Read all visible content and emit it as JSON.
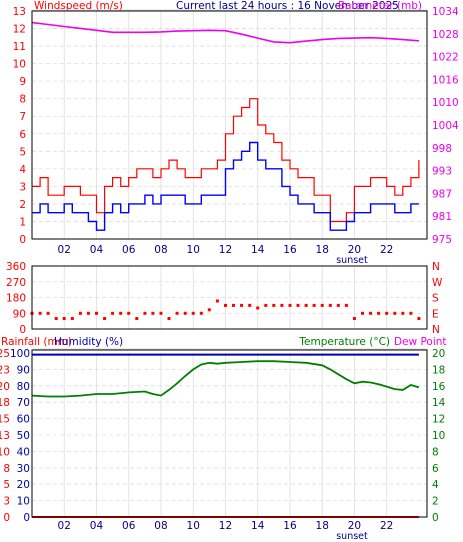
{
  "header": {
    "windspeed_label": "Windspeed (m/s)",
    "title": "Current last 24 hours : 16 November 2025",
    "barometer_label": "Barometer (mb)"
  },
  "labels": {
    "sunset": "sunset",
    "rainfall": "Rainfall (mm)",
    "humidity": "Humidity (%)",
    "temperature": "Temperature (°C)",
    "dew_point": "Dew Point"
  },
  "colors": {
    "wind_speed": "#0000ff",
    "wind_gust": "#ff0000",
    "barometer": "#ee00ee",
    "direction": "#ff0000",
    "humidity": "#0000aa",
    "temperature": "#008000",
    "rainfall": "#ff0000"
  },
  "chart_data": [
    {
      "type": "line",
      "panel": "wind-barometer",
      "x_ticks": [
        "02",
        "04",
        "06",
        "08",
        "10",
        "12",
        "14",
        "16",
        "18",
        "20",
        "22"
      ],
      "xlim": [
        0,
        24.5
      ],
      "left_axis": {
        "label": "Windspeed (m/s)",
        "ticks": [
          0,
          1,
          2,
          3,
          4,
          5,
          6,
          7,
          8,
          9,
          10,
          11,
          12,
          13
        ],
        "ylim": [
          0,
          13
        ]
      },
      "right_axis": {
        "label": "Barometer (mb)",
        "ticks": [
          "975",
          "981",
          "987",
          "993",
          "998",
          "1004",
          "1010",
          "1016",
          "1022",
          "1028",
          "1034"
        ],
        "ylim": [
          975,
          1034
        ]
      },
      "grid": true,
      "series": [
        {
          "name": "Windspeed",
          "color": "#0000ff",
          "x": [
            0.0,
            0.5,
            1.0,
            1.5,
            2.0,
            2.5,
            3.0,
            3.5,
            4.0,
            4.5,
            5.0,
            5.5,
            6.0,
            6.5,
            7.0,
            7.5,
            8.0,
            8.5,
            9.0,
            9.5,
            10.0,
            10.5,
            11.0,
            11.5,
            12.0,
            12.5,
            13.0,
            13.5,
            14.0,
            14.5,
            15.0,
            15.5,
            16.0,
            16.5,
            17.0,
            17.5,
            18.0,
            18.5,
            19.0,
            19.5,
            20.0,
            20.5,
            21.0,
            21.5,
            22.0,
            22.5,
            23.0,
            23.5,
            24.0
          ],
          "values": [
            1.5,
            2.0,
            1.5,
            1.5,
            2.0,
            1.5,
            1.5,
            1.0,
            0.5,
            1.5,
            2.0,
            1.5,
            2.0,
            2.0,
            2.5,
            2.0,
            2.5,
            2.5,
            2.5,
            2.0,
            2.0,
            2.5,
            2.5,
            2.5,
            4.0,
            4.5,
            5.0,
            5.5,
            4.5,
            4.0,
            4.0,
            3.0,
            2.5,
            2.0,
            2.0,
            1.5,
            1.5,
            0.5,
            0.5,
            1.0,
            1.5,
            1.5,
            2.0,
            2.0,
            2.0,
            1.5,
            1.5,
            2.0,
            2.0
          ]
        },
        {
          "name": "Gust",
          "color": "#ff0000",
          "x": [
            0.0,
            0.5,
            1.0,
            1.5,
            2.0,
            2.5,
            3.0,
            3.5,
            4.0,
            4.5,
            5.0,
            5.5,
            6.0,
            6.5,
            7.0,
            7.5,
            8.0,
            8.5,
            9.0,
            9.5,
            10.0,
            10.5,
            11.0,
            11.5,
            12.0,
            12.5,
            13.0,
            13.5,
            14.0,
            14.5,
            15.0,
            15.5,
            16.0,
            16.5,
            17.0,
            17.5,
            18.0,
            18.5,
            19.0,
            19.5,
            20.0,
            20.5,
            21.0,
            21.5,
            22.0,
            22.5,
            23.0,
            23.5,
            24.0
          ],
          "values": [
            3.0,
            3.5,
            2.5,
            2.5,
            3.0,
            3.0,
            2.5,
            2.5,
            1.5,
            3.0,
            3.5,
            3.0,
            3.5,
            4.0,
            4.0,
            3.5,
            4.0,
            4.5,
            4.0,
            3.5,
            3.5,
            4.0,
            4.0,
            4.5,
            6.0,
            7.0,
            7.5,
            8.0,
            6.5,
            6.0,
            5.5,
            4.5,
            4.0,
            3.5,
            3.5,
            2.5,
            2.5,
            1.0,
            1.0,
            1.5,
            3.0,
            3.0,
            3.5,
            3.5,
            3.0,
            2.5,
            3.0,
            3.5,
            4.5
          ]
        },
        {
          "name": "Barometer",
          "color": "#ee00ee",
          "axis": "right",
          "x": [
            0,
            1,
            2,
            3,
            4,
            5,
            6,
            7,
            8,
            9,
            10,
            11,
            12,
            13,
            14,
            15,
            16,
            17,
            18,
            19,
            20,
            21,
            22,
            23,
            24
          ],
          "values": [
            1031,
            1030.5,
            1030,
            1029.5,
            1029,
            1028.5,
            1028.5,
            1028.5,
            1028.6,
            1028.8,
            1028.9,
            1029,
            1028.9,
            1028,
            1027,
            1026,
            1025.8,
            1026.2,
            1026.6,
            1026.9,
            1027,
            1027.1,
            1026.9,
            1026.6,
            1026.3
          ]
        }
      ]
    },
    {
      "type": "scatter",
      "panel": "wind-direction",
      "left_axis": {
        "ticks": [
          0,
          90,
          180,
          270,
          360
        ],
        "ylim": [
          0,
          360
        ]
      },
      "right_axis": {
        "ticks": [
          "N",
          "E",
          "S",
          "W",
          "N"
        ]
      },
      "xlim": [
        0,
        24.5
      ],
      "grid": true,
      "series": [
        {
          "name": "Direction",
          "color": "#ff0000",
          "x": [
            0.0,
            0.5,
            1.0,
            1.5,
            2.0,
            2.5,
            3.0,
            3.5,
            4.0,
            4.5,
            5.0,
            5.5,
            6.0,
            6.5,
            7.0,
            7.5,
            8.0,
            8.5,
            9.0,
            9.5,
            10.0,
            10.5,
            11.0,
            11.5,
            12.0,
            12.5,
            13.0,
            13.5,
            14.0,
            14.5,
            15.0,
            15.5,
            16.0,
            16.5,
            17.0,
            17.5,
            18.0,
            18.5,
            19.0,
            19.5,
            20.0,
            20.5,
            21.0,
            21.5,
            22.0,
            22.5,
            23.0,
            23.5,
            24.0
          ],
          "values": [
            90,
            90,
            90,
            60,
            60,
            60,
            90,
            90,
            90,
            60,
            90,
            90,
            90,
            60,
            90,
            90,
            90,
            60,
            90,
            90,
            90,
            90,
            110,
            160,
            135,
            135,
            135,
            135,
            120,
            135,
            135,
            135,
            135,
            135,
            135,
            135,
            135,
            135,
            135,
            135,
            60,
            90,
            90,
            90,
            90,
            90,
            90,
            90,
            60
          ]
        }
      ]
    },
    {
      "type": "line",
      "panel": "temperature-humidity",
      "x_ticks": [
        "02",
        "04",
        "06",
        "08",
        "10",
        "12",
        "14",
        "16",
        "18",
        "20",
        "22"
      ],
      "xlim": [
        0,
        24.5
      ],
      "left_axis": {
        "label": "Rainfall (mm)",
        "ticks": [
          0,
          3,
          5,
          8,
          10,
          13,
          15,
          18,
          20,
          23,
          25
        ],
        "ylim": [
          0,
          25
        ]
      },
      "left_axis_2": {
        "label": "Humidity (%)",
        "ticks": [
          0,
          10,
          20,
          30,
          40,
          50,
          60,
          70,
          80,
          90,
          100
        ],
        "ylim": [
          0,
          100
        ]
      },
      "right_axis": {
        "label": "Temperature (°C)",
        "ticks": [
          0,
          2,
          4,
          6,
          8,
          10,
          12,
          14,
          16,
          18,
          20
        ],
        "ylim": [
          0,
          20
        ]
      },
      "grid": true,
      "series": [
        {
          "name": "Temperature",
          "color": "#008000",
          "axis": "right",
          "x": [
            0,
            1,
            2,
            3,
            4,
            5,
            6,
            7,
            7.5,
            8,
            8.5,
            9,
            9.5,
            10,
            10.5,
            11,
            11.5,
            12,
            13,
            14,
            15,
            16,
            17,
            18,
            18.5,
            19,
            19.5,
            20,
            20.5,
            21,
            21.5,
            22,
            22.5,
            23,
            23.5,
            24
          ],
          "values": [
            14.8,
            14.7,
            14.7,
            14.8,
            15.0,
            15.0,
            15.2,
            15.3,
            15.0,
            14.8,
            15.5,
            16.3,
            17.2,
            18.0,
            18.6,
            18.8,
            18.7,
            18.8,
            18.9,
            19.0,
            19.0,
            18.9,
            18.8,
            18.5,
            18.0,
            17.4,
            16.8,
            16.3,
            16.5,
            16.4,
            16.2,
            15.9,
            15.6,
            15.5,
            16.1,
            15.8
          ]
        },
        {
          "name": "Humidity",
          "color": "#0000aa",
          "axis": "left_2",
          "x": [
            0,
            24
          ],
          "values": [
            99,
            99
          ]
        },
        {
          "name": "Rainfall",
          "color": "#ff0000",
          "axis": "left",
          "x": [
            0,
            24
          ],
          "values": [
            0,
            0
          ]
        }
      ]
    }
  ]
}
